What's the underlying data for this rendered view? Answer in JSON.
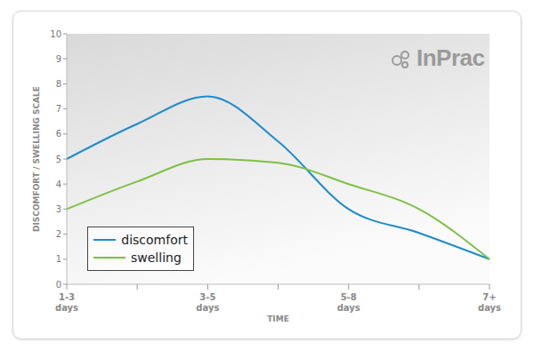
{
  "chart_data": {
    "type": "line",
    "logo": "InPrac",
    "x_label": "TIME",
    "y_label": "DISCOMFORT / SWELLING SCALE",
    "categories": [
      "1-3 days",
      null,
      "3-5 days",
      null,
      "5-8 days",
      null,
      "7+ days"
    ],
    "series": [
      {
        "name": "discomfort",
        "color": "#1e8bcd",
        "values": [
          5,
          6.4,
          7.5,
          5.7,
          3,
          2.05,
          1
        ]
      },
      {
        "name": "swelling",
        "color": "#7cc142",
        "values": [
          3,
          4.1,
          5,
          4.85,
          4,
          3,
          1
        ]
      }
    ],
    "ylim": [
      0,
      10
    ],
    "yticks": [
      0,
      1,
      2,
      3,
      4,
      5,
      6,
      7,
      8,
      9,
      10
    ],
    "grid": false,
    "legend": "bottom left",
    "marker": "none"
  }
}
